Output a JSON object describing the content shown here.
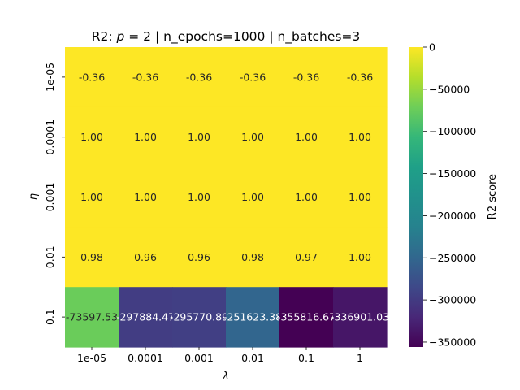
{
  "chart_data": {
    "type": "heatmap",
    "title_prefix": "R2: ",
    "title_math_symbol": "p",
    "title_math_rest": " = 2",
    "title_suffix": " | n_epochs=1000 | n_batches=3",
    "xlabel": "λ",
    "ylabel": "η",
    "x_categories": [
      "1e-05",
      "0.0001",
      "0.001",
      "0.01",
      "0.1",
      "1"
    ],
    "y_categories": [
      "1e-05",
      "0.0001",
      "0.001",
      "0.01",
      "0.1"
    ],
    "values": [
      [
        -0.36,
        -0.36,
        -0.36,
        -0.36,
        -0.36,
        -0.36
      ],
      [
        1.0,
        1.0,
        1.0,
        1.0,
        1.0,
        1.0
      ],
      [
        1.0,
        1.0,
        1.0,
        1.0,
        1.0,
        1.0
      ],
      [
        0.98,
        0.96,
        0.96,
        0.98,
        0.97,
        1.0
      ],
      [
        -73597.53,
        -297884.47,
        -295770.89,
        -251623.38,
        -355816.67,
        -336901.03
      ]
    ],
    "annotations": [
      [
        "-0.36",
        "-0.36",
        "-0.36",
        "-0.36",
        "-0.36",
        "-0.36"
      ],
      [
        "1.00",
        "1.00",
        "1.00",
        "1.00",
        "1.00",
        "1.00"
      ],
      [
        "1.00",
        "1.00",
        "1.00",
        "1.00",
        "1.00",
        "1.00"
      ],
      [
        "0.98",
        "0.96",
        "0.96",
        "0.98",
        "0.97",
        "1.00"
      ],
      [
        "-73597.53",
        "-297884.47",
        "-295770.89",
        "-251623.38",
        "-355816.67",
        "-336901.03"
      ]
    ],
    "colorbar": {
      "label": "R2 score",
      "colormap": "viridis",
      "vmin": -355816.67,
      "vmax": 1.0,
      "ticks": [
        0,
        -50000,
        -100000,
        -150000,
        -200000,
        -250000,
        -300000,
        -350000
      ],
      "tick_labels": [
        "0",
        "−50000",
        "−100000",
        "−150000",
        "−200000",
        "−250000",
        "−300000",
        "−350000"
      ]
    }
  }
}
